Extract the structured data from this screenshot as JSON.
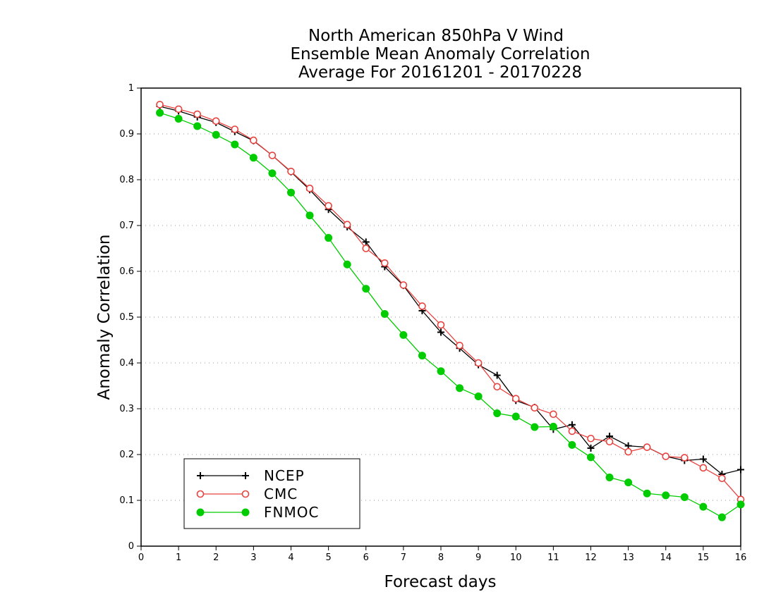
{
  "chart_data": {
    "type": "line",
    "title": [
      "North American 850hPa V Wind",
      "Ensemble Mean Anomaly Correlation",
      "Average For 20161201 - 20170228"
    ],
    "xlabel": "Forecast days",
    "ylabel": "Anomaly Correlation",
    "xlim": [
      0,
      16
    ],
    "ylim": [
      0,
      1
    ],
    "xticks": [
      "0",
      "1",
      "2",
      "3",
      "4",
      "5",
      "6",
      "7",
      "8",
      "9",
      "10",
      "11",
      "12",
      "13",
      "14",
      "15",
      "16"
    ],
    "yticks": [
      "0",
      "0.1",
      "0.2",
      "0.3",
      "0.4",
      "0.5",
      "0.6",
      "0.7",
      "0.8",
      "0.9",
      "1"
    ],
    "grid": "horizontal dotted",
    "legend_position": "bottom-left",
    "x": [
      0.5,
      1,
      1.5,
      2,
      2.5,
      3,
      3.5,
      4,
      4.5,
      5,
      5.5,
      6,
      6.5,
      7,
      7.5,
      8,
      8.5,
      9,
      9.5,
      10,
      10.5,
      11,
      11.5,
      12,
      12.5,
      13,
      13.5,
      14,
      14.5,
      15,
      15.5,
      16
    ],
    "series": [
      {
        "name": "NCEP",
        "color": "#000000",
        "marker": "plus",
        "values": [
          0.96,
          0.95,
          0.937,
          0.925,
          0.905,
          0.885,
          0.853,
          0.817,
          0.778,
          0.735,
          0.697,
          0.664,
          0.61,
          0.569,
          0.514,
          0.467,
          0.432,
          0.396,
          0.373,
          0.318,
          0.303,
          0.255,
          0.265,
          0.214,
          0.24,
          0.219,
          0.216,
          0.196,
          0.187,
          0.19,
          0.157,
          0.167
        ]
      },
      {
        "name": "CMC",
        "color": "#e8423f",
        "marker": "open-circle",
        "values": [
          0.964,
          0.954,
          0.943,
          0.928,
          0.91,
          0.886,
          0.853,
          0.818,
          0.781,
          0.743,
          0.702,
          0.65,
          0.618,
          0.57,
          0.524,
          0.483,
          0.438,
          0.4,
          0.348,
          0.322,
          0.302,
          0.288,
          0.251,
          0.235,
          0.228,
          0.206,
          0.216,
          0.196,
          0.193,
          0.171,
          0.148,
          0.102
        ]
      },
      {
        "name": "FNMOC",
        "color": "#00cc00",
        "marker": "filled-circle",
        "values": [
          0.946,
          0.933,
          0.917,
          0.898,
          0.877,
          0.848,
          0.814,
          0.772,
          0.722,
          0.673,
          0.615,
          0.562,
          0.507,
          0.461,
          0.416,
          0.382,
          0.345,
          0.327,
          0.29,
          0.283,
          0.26,
          0.261,
          0.221,
          0.194,
          0.15,
          0.139,
          0.115,
          0.111,
          0.107,
          0.086,
          0.063,
          0.091
        ]
      }
    ]
  }
}
